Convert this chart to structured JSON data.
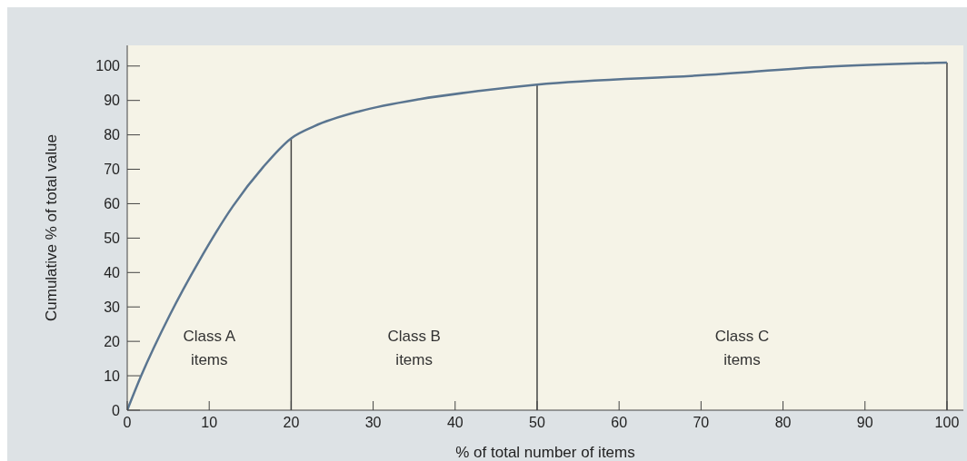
{
  "chart_data": {
    "type": "line",
    "xlabel": "% of total number of items",
    "ylabel": "Cumulative % of total value",
    "x": [
      0,
      1.7,
      5.2,
      8.8,
      12.9,
      16.6,
      20,
      22.8,
      28.4,
      35.7,
      43.1,
      50,
      70.7,
      85.4,
      100
    ],
    "series": [
      {
        "color": "#5a7590",
        "values": [
          0,
          10,
          27.7,
          43.5,
          59.3,
          70.7,
          79,
          82.5,
          86.9,
          90.4,
          92.8,
          94.6,
          97.4,
          99.8,
          101
        ]
      }
    ],
    "xlim": [
      0,
      102
    ],
    "xticks": [
      0,
      10,
      20,
      30,
      40,
      50,
      60,
      70,
      80,
      90,
      100
    ],
    "ylim": [
      0,
      106
    ],
    "yticks": [
      0,
      10,
      20,
      30,
      40,
      50,
      60,
      70,
      80,
      90,
      100
    ],
    "grid": false,
    "legend": false,
    "marker": "none",
    "line_style": "solid",
    "ref_lines": [
      {
        "axis": "x",
        "value": 20,
        "color": "#444444"
      },
      {
        "axis": "x",
        "value": 50,
        "color": "#444444"
      },
      {
        "axis": "x",
        "value": 100,
        "color": "#444444"
      }
    ],
    "annotations": [
      "Class A items",
      "Class B items",
      "Class C items"
    ]
  }
}
